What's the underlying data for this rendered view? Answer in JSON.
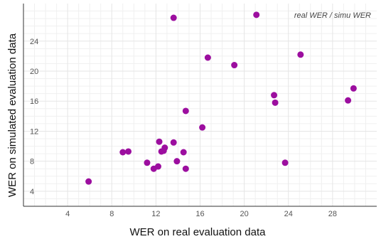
{
  "chart_data": {
    "type": "scatter",
    "title": "",
    "xlabel": "WER on real evaluation data",
    "ylabel": "WER on simulated evaluation data",
    "legend_label": "real WER / simu WER",
    "legend_position": "top-right",
    "grid": true,
    "xlim": [
      0,
      32
    ],
    "ylim": [
      2,
      29
    ],
    "xticks": [
      4,
      8,
      12,
      16,
      20,
      24,
      28
    ],
    "yticks": [
      4,
      8,
      12,
      16,
      20,
      24
    ],
    "point_color": "#9c0e9f",
    "grid_color": "#e5e5e5",
    "points": [
      {
        "x": 5.9,
        "y": 5.3
      },
      {
        "x": 9.0,
        "y": 9.2
      },
      {
        "x": 9.5,
        "y": 9.3
      },
      {
        "x": 11.2,
        "y": 7.8
      },
      {
        "x": 11.8,
        "y": 7.0
      },
      {
        "x": 12.2,
        "y": 7.3
      },
      {
        "x": 12.3,
        "y": 10.6
      },
      {
        "x": 12.5,
        "y": 9.3
      },
      {
        "x": 12.7,
        "y": 9.4
      },
      {
        "x": 12.8,
        "y": 9.8
      },
      {
        "x": 13.6,
        "y": 10.5
      },
      {
        "x": 13.6,
        "y": 27.1
      },
      {
        "x": 13.9,
        "y": 8.0
      },
      {
        "x": 14.5,
        "y": 9.2
      },
      {
        "x": 14.7,
        "y": 7.0
      },
      {
        "x": 14.7,
        "y": 14.7
      },
      {
        "x": 16.2,
        "y": 12.5
      },
      {
        "x": 16.7,
        "y": 21.8
      },
      {
        "x": 19.1,
        "y": 20.8
      },
      {
        "x": 21.1,
        "y": 27.5
      },
      {
        "x": 22.7,
        "y": 16.8
      },
      {
        "x": 22.8,
        "y": 15.8
      },
      {
        "x": 23.7,
        "y": 7.8
      },
      {
        "x": 25.1,
        "y": 22.2
      },
      {
        "x": 29.4,
        "y": 16.1
      },
      {
        "x": 29.9,
        "y": 17.7
      }
    ]
  }
}
